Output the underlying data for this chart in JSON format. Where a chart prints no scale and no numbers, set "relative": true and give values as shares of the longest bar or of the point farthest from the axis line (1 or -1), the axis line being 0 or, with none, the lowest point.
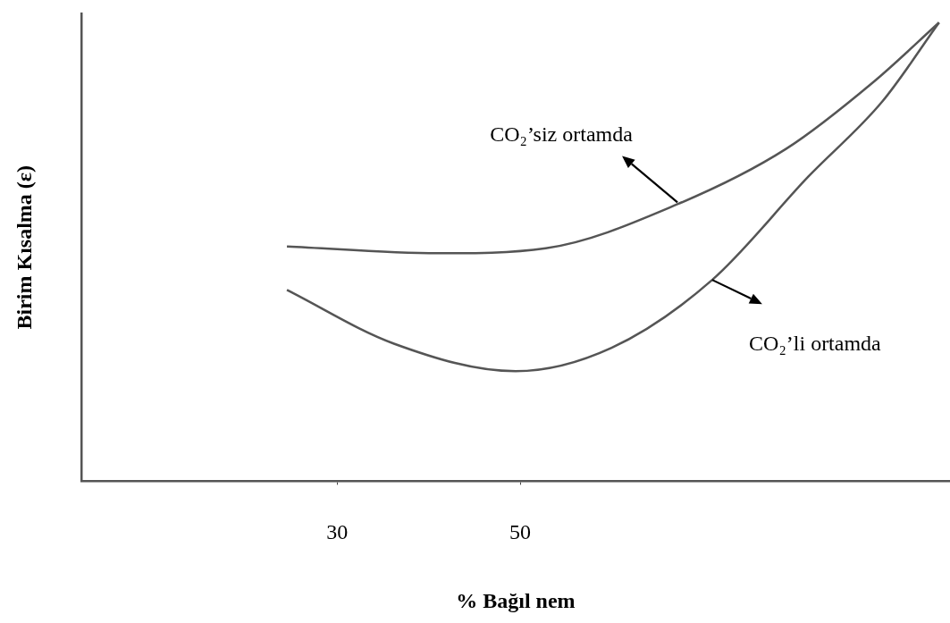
{
  "chart_data": {
    "type": "line",
    "xlabel": "% Bağıl nem",
    "ylabel": "Birim Kısalma (ε)",
    "relative": true,
    "xlim": [
      2,
      97
    ],
    "xticks": [
      30,
      50
    ],
    "grid": false,
    "legend": false,
    "marker": "none",
    "line_style": "solid",
    "series": [
      {
        "color": "#555555",
        "x": [
          24.5,
          41.0,
          52.8,
          67.2,
          79.1,
          88.6,
          95.8
        ],
        "values": [
          0.512,
          0.497,
          0.508,
          0.604,
          0.725,
          0.87,
          1.0
        ]
      },
      {
        "color": "#555555",
        "x": [
          24.5,
          36.2,
          49.5,
          60.0,
          71.0,
          81.5,
          89.6,
          95.8
        ],
        "values": [
          0.417,
          0.3,
          0.24,
          0.291,
          0.439,
          0.664,
          0.828,
          1.0
        ]
      }
    ],
    "annotations": [
      {
        "text": "CO₂’siz ortamda",
        "x": 67.2,
        "y": 0.604
      },
      {
        "text": "CO₂’li ortamda",
        "x": 71.0,
        "y": 0.439
      }
    ]
  }
}
